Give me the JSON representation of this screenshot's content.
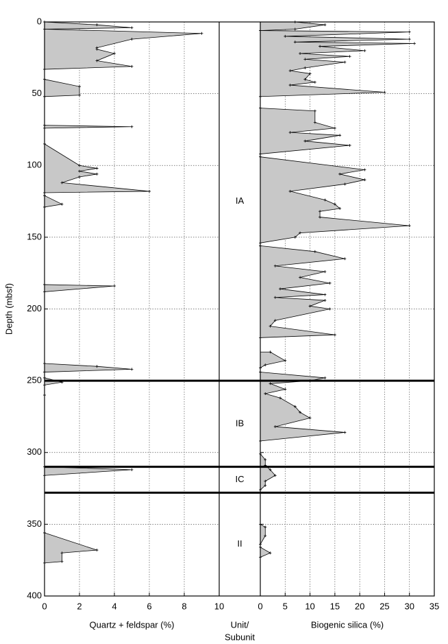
{
  "chart_data": [
    {
      "type": "area",
      "y_label": "Depth (mbsf)",
      "x_label": "Quartz + feldspar (%)",
      "color": "#c8c8c8",
      "y": [
        0,
        2,
        4,
        5,
        8,
        12,
        18,
        19,
        22,
        27,
        31,
        33,
        null,
        40,
        45,
        51,
        52,
        null,
        72,
        73,
        74,
        null,
        85,
        100,
        102,
        104,
        106,
        108,
        112,
        118,
        119,
        null,
        121,
        127,
        129,
        null,
        183,
        184,
        188,
        null,
        238,
        240,
        242,
        244,
        248,
        251,
        253,
        260,
        null,
        310,
        312,
        316,
        null,
        356,
        368,
        370,
        376,
        377
      ],
      "values": [
        0,
        3,
        5,
        0,
        9,
        5,
        3,
        3,
        4,
        3,
        5,
        0,
        null,
        0,
        2,
        2,
        0,
        null,
        0,
        5,
        0,
        null,
        0,
        2,
        3,
        2,
        3,
        2,
        1,
        6,
        0,
        null,
        0,
        1,
        0,
        null,
        0,
        4,
        0,
        null,
        0,
        3,
        5,
        0,
        0,
        1,
        0,
        0,
        null,
        0,
        5,
        0,
        null,
        0,
        3,
        1,
        1,
        0
      ],
      "xlim": [
        0,
        10
      ],
      "xticks": [
        0,
        2,
        4,
        6,
        8,
        10
      ],
      "ylim": [
        0,
        400
      ],
      "yticks": [
        0,
        50,
        100,
        150,
        200,
        250,
        300,
        350,
        400
      ],
      "grid": true
    },
    {
      "type": "area",
      "x_label": "Biogenic silica (%)",
      "color": "#c8c8c8",
      "y": [
        0,
        2,
        5,
        6,
        7,
        10,
        12,
        14,
        15,
        17,
        20,
        22,
        24,
        26,
        28,
        32,
        34,
        36,
        40,
        42,
        44,
        49,
        52,
        null,
        60,
        62,
        70,
        74,
        77,
        79,
        83,
        86,
        92,
        null,
        94,
        103,
        106,
        110,
        113,
        118,
        124,
        127,
        130,
        132,
        136,
        142,
        147,
        150,
        154,
        null,
        156,
        160,
        165,
        170,
        174,
        178,
        182,
        186,
        190,
        192,
        194,
        198,
        200,
        208,
        212,
        218,
        220,
        null,
        230,
        236,
        239,
        241,
        null,
        244,
        248,
        250,
        252,
        256,
        259,
        262,
        268,
        272,
        276,
        282,
        286,
        292,
        null,
        301,
        305,
        309,
        312,
        316,
        320,
        323,
        326,
        null,
        350,
        352,
        358,
        364,
        null,
        366,
        370,
        373
      ],
      "values": [
        7,
        13,
        7,
        0,
        30,
        5,
        30,
        7,
        31,
        12,
        21,
        8,
        18,
        9,
        17,
        9,
        6,
        10,
        9,
        11,
        6,
        25,
        0,
        null,
        0,
        11,
        11,
        15,
        6,
        16,
        9,
        18,
        0,
        null,
        0,
        21,
        16,
        21,
        17,
        6,
        13,
        15,
        16,
        12,
        12,
        30,
        8,
        7,
        0,
        null,
        0,
        11,
        17,
        3,
        13,
        8,
        14,
        4,
        13,
        3,
        13,
        10,
        14,
        3,
        2,
        15,
        0,
        null,
        2,
        5,
        1,
        0,
        null,
        0,
        13,
        10,
        2,
        5,
        1,
        4,
        7,
        8,
        10,
        3,
        17,
        0,
        null,
        0,
        1,
        1,
        2,
        3,
        1,
        1,
        0,
        null,
        0,
        1,
        1,
        0,
        null,
        0,
        2,
        0
      ],
      "xlim": [
        0,
        35
      ],
      "xticks": [
        0,
        5,
        10,
        15,
        20,
        25,
        30,
        35
      ],
      "ylim": [
        0,
        400
      ],
      "yticks": [
        0,
        50,
        100,
        150,
        200,
        250,
        300,
        350,
        400
      ],
      "grid": true
    }
  ],
  "units": {
    "label": [
      "Unit/",
      "Subunit"
    ],
    "intervals": [
      {
        "name": "IA",
        "top": 0,
        "bottom": 250
      },
      {
        "name": "IB",
        "top": 250,
        "bottom": 310
      },
      {
        "name": "IC",
        "top": 310,
        "bottom": 328
      },
      {
        "name": "II",
        "top": 328,
        "bottom": 400
      }
    ]
  }
}
